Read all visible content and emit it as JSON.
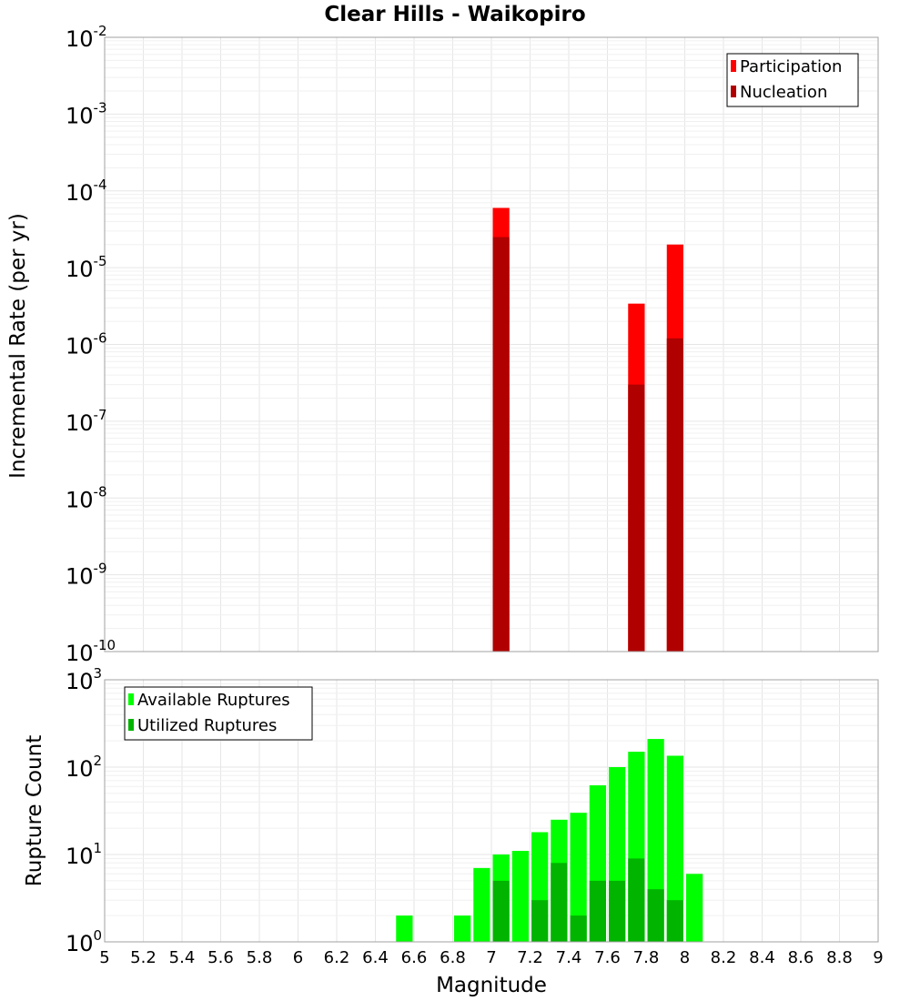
{
  "chart_data": [
    {
      "type": "bar",
      "title": "Clear Hills - Waikopiro",
      "ylabel": "Incremental Rate (per yr)",
      "xlabel": "",
      "yscale": "log",
      "ylim_exp": [
        -10,
        -2
      ],
      "xlim": [
        5,
        9
      ],
      "x": [
        7.05,
        7.75,
        7.95
      ],
      "series": [
        {
          "name": "Participation",
          "color": "#ff0000",
          "values": [
            6e-05,
            3.4e-06,
            2e-05
          ]
        },
        {
          "name": "Nucleation",
          "color": "#b00000",
          "values": [
            2.5e-05,
            3e-07,
            1.2e-06
          ]
        }
      ],
      "legend": "top-right"
    },
    {
      "type": "bar",
      "title": "",
      "ylabel": "Rupture Count",
      "xlabel": "Magnitude",
      "yscale": "log",
      "ylim_exp": [
        0,
        3
      ],
      "xlim": [
        5,
        9
      ],
      "x": [
        6.55,
        6.65,
        6.75,
        6.85,
        6.95,
        7.05,
        7.15,
        7.25,
        7.35,
        7.45,
        7.55,
        7.65,
        7.75,
        7.85,
        7.95,
        8.05
      ],
      "series": [
        {
          "name": "Available Ruptures",
          "color": "#00ff00",
          "values": [
            2,
            1,
            null,
            2,
            7,
            10,
            11,
            18,
            25,
            30,
            62,
            100,
            150,
            210,
            135,
            6
          ]
        },
        {
          "name": "Utilized Ruptures",
          "color": "#00b400",
          "values": [
            null,
            null,
            null,
            null,
            null,
            5,
            null,
            3,
            8,
            2,
            5,
            5,
            9,
            4,
            3,
            null
          ]
        }
      ],
      "legend": "top-left"
    }
  ],
  "x_ticks": [
    "5",
    "5.2",
    "5.4",
    "5.6",
    "5.8",
    "6",
    "6.2",
    "6.4",
    "6.6",
    "6.8",
    "7",
    "7.2",
    "7.4",
    "7.6",
    "7.8",
    "8",
    "8.2",
    "8.4",
    "8.6",
    "8.8",
    "9"
  ]
}
